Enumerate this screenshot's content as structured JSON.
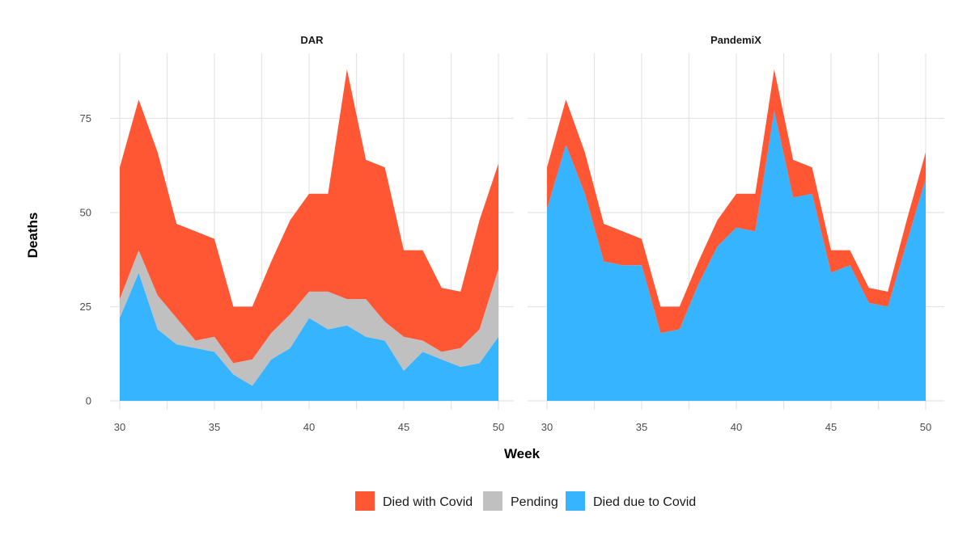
{
  "chart_data": {
    "type": "area",
    "stacked": true,
    "xlabel": "Week",
    "ylabel": "Deaths",
    "xlim": [
      29.5,
      52
    ],
    "ylim": [
      0,
      92
    ],
    "x_ticks": [
      30,
      35,
      40,
      45,
      50
    ],
    "y_ticks": [
      0,
      25,
      50,
      75
    ],
    "x": [
      30,
      31,
      32,
      33,
      34,
      35,
      36,
      37,
      38,
      39,
      40,
      41,
      42,
      43,
      44,
      45,
      46,
      47,
      48,
      49,
      50
    ],
    "legend": [
      {
        "key": "with",
        "label": "Died with Covid",
        "color": "#FF5733"
      },
      {
        "key": "pending",
        "label": "Pending",
        "color": "#C0C0C0"
      },
      {
        "key": "due",
        "label": "Died due to Covid",
        "color": "#36B4FF"
      }
    ],
    "panels": [
      {
        "title": "DAR",
        "series": [
          {
            "key": "due",
            "name": "Died due to Covid",
            "values": [
              22,
              34,
              19,
              15,
              14,
              13,
              7,
              4,
              11,
              14,
              22,
              19,
              20,
              17,
              16,
              8,
              13,
              11,
              9,
              10,
              17
            ]
          },
          {
            "key": "pending",
            "name": "Pending",
            "values": [
              5,
              6,
              9,
              7,
              2,
              4,
              3,
              7,
              7,
              9,
              7,
              10,
              7,
              10,
              5,
              9,
              3,
              2,
              5,
              9,
              18
            ]
          },
          {
            "key": "with",
            "name": "Died with Covid",
            "values": [
              35,
              40,
              38,
              25,
              29,
              26,
              15,
              14,
              19,
              25,
              26,
              26,
              61,
              37,
              41,
              23,
              24,
              17,
              15,
              29,
              28
            ]
          }
        ]
      },
      {
        "title": "PandemiX",
        "series": [
          {
            "key": "due",
            "name": "Died due to Covid",
            "values": [
              51,
              68,
              55,
              37,
              36,
              36,
              18,
              19,
              31,
              41,
              46,
              45,
              77,
              54,
              55,
              34,
              36,
              26,
              25,
              42,
              59
            ]
          },
          {
            "key": "pending",
            "name": "Pending",
            "values": [
              0,
              0,
              0,
              0,
              0,
              0,
              0,
              0,
              0,
              0,
              0,
              0,
              0,
              0,
              0,
              0,
              0,
              0,
              0,
              0,
              0
            ]
          },
          {
            "key": "with",
            "name": "Died with Covid",
            "values": [
              11,
              12,
              11,
              10,
              9,
              7,
              7,
              6,
              6,
              7,
              9,
              10,
              11,
              10,
              7,
              6,
              4,
              4,
              4,
              6,
              7
            ]
          }
        ]
      }
    ]
  }
}
